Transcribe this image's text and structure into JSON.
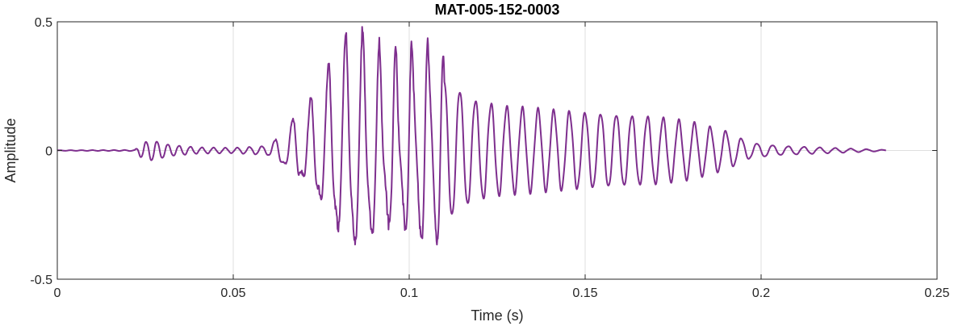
{
  "chart_data": {
    "type": "line",
    "title": "MAT-005-152-0003",
    "xlabel": "Time (s)",
    "ylabel": "Amplitude",
    "xlim": [
      0,
      0.25
    ],
    "ylim": [
      -0.5,
      0.5
    ],
    "xticks": [
      0,
      0.05,
      0.1,
      0.15,
      0.2,
      0.25
    ],
    "xtick_labels": [
      "0",
      "0.05",
      "0.1",
      "0.15",
      "0.2",
      "0.25"
    ],
    "yticks": [
      -0.5,
      0,
      0.5
    ],
    "ytick_labels": [
      "-0.5",
      "0",
      "0.5"
    ],
    "grid": true,
    "line_color": "#7E2F8E",
    "signal": {
      "sample_rate_hz": 8000,
      "duration_s": 0.2355,
      "envelope_points": {
        "t": [
          0,
          0.022,
          0.024,
          0.027,
          0.032,
          0.04,
          0.05,
          0.06,
          0.0635,
          0.068,
          0.075,
          0.082,
          0.088,
          0.094,
          0.099,
          0.104,
          0.11,
          0.118,
          0.127,
          0.14,
          0.155,
          0.17,
          0.18,
          0.19,
          0.197,
          0.205,
          0.22,
          0.2355
        ],
        "amp": [
          0.001,
          0.002,
          0.03,
          0.04,
          0.022,
          0.012,
          0.01,
          0.018,
          0.06,
          0.16,
          0.25,
          0.33,
          0.38,
          0.42,
          0.41,
          0.36,
          0.28,
          0.2,
          0.17,
          0.155,
          0.145,
          0.13,
          0.11,
          0.075,
          0.03,
          0.018,
          0.01,
          0.002
        ]
      },
      "frequency_points": {
        "t": [
          0,
          0.022,
          0.06,
          0.064,
          0.11,
          0.2355
        ],
        "hz": [
          320,
          330,
          280,
          190,
          225,
          225
        ]
      }
    }
  }
}
